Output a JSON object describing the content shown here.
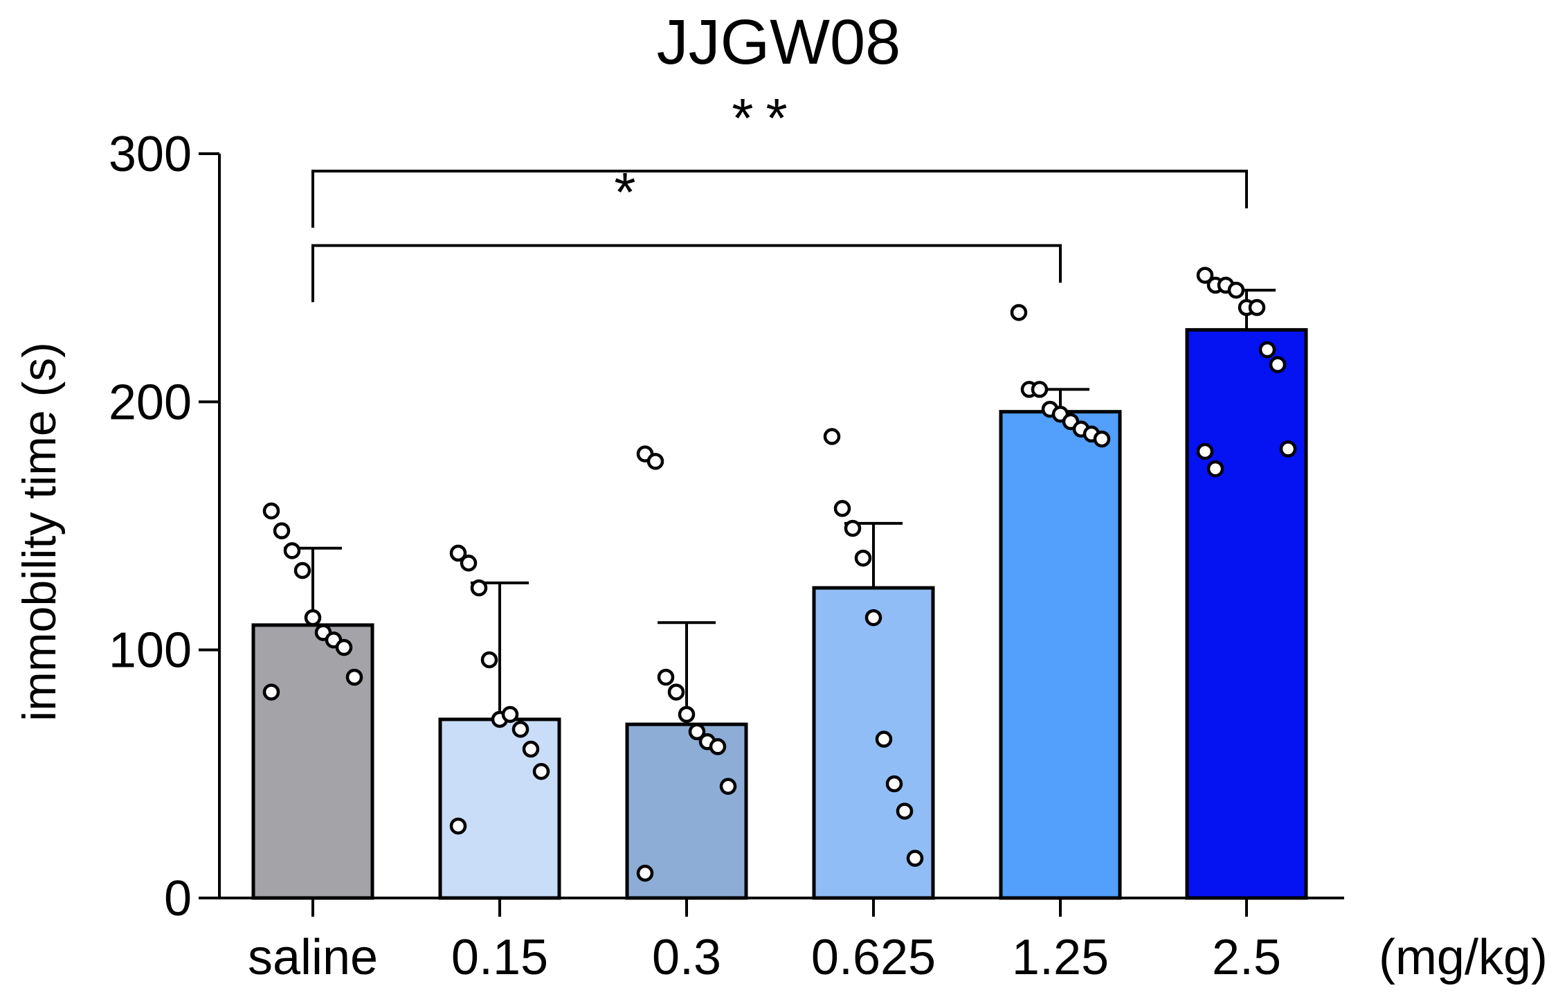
{
  "chart_data": {
    "type": "bar",
    "title": "JJGW08",
    "xlabel": "",
    "x_unit_label": "(mg/kg)",
    "ylabel": "immobility time (s)",
    "ylim": [
      0,
      300
    ],
    "yticks": [
      0,
      100,
      200,
      300
    ],
    "categories": [
      "saline",
      "0.15",
      "0.3",
      "0.625",
      "1.25",
      "2.5"
    ],
    "bar_colors": [
      "#a3a3a8",
      "#c9ddf8",
      "#8dadd6",
      "#90bdf6",
      "#529ffc",
      "#0512f2"
    ],
    "means": [
      110,
      72,
      70,
      125,
      196,
      229
    ],
    "error_upper": [
      141,
      127,
      111,
      151,
      205,
      245
    ],
    "points": [
      [
        156,
        148,
        140,
        132,
        113,
        107,
        104,
        101,
        89,
        83
      ],
      [
        139,
        135,
        125,
        96,
        72,
        74,
        68,
        60,
        51,
        29
      ],
      [
        179,
        176,
        89,
        83,
        74,
        67,
        63,
        61,
        45,
        10
      ],
      [
        186,
        157,
        149,
        137,
        113,
        64,
        46,
        35,
        16
      ],
      [
        236,
        205,
        205,
        197,
        195,
        192,
        189,
        187,
        185
      ],
      [
        251,
        247,
        247,
        245,
        238,
        238,
        221,
        215,
        181,
        180,
        173
      ]
    ],
    "significance": [
      {
        "from": "saline",
        "to": "1.25",
        "label": "*"
      },
      {
        "from": "saline",
        "to": "2.5",
        "label": "**"
      }
    ]
  }
}
